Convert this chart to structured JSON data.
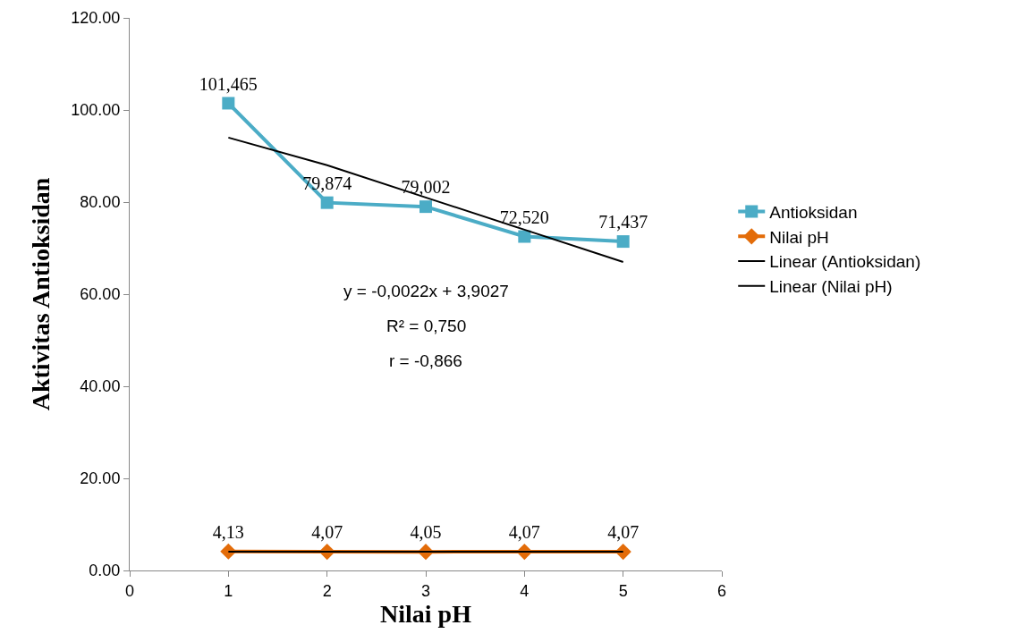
{
  "chart_data": {
    "type": "line",
    "xlabel": "Nilai pH",
    "ylabel": "Aktivitas Antioksidan",
    "x": [
      1,
      2,
      3,
      4,
      5
    ],
    "series": [
      {
        "name": "Antioksidan",
        "color": "#4bacc6",
        "marker": "square",
        "values": [
          101.465,
          79.874,
          79.002,
          72.52,
          71.437
        ],
        "value_labels": [
          "101,465",
          "79,874",
          "79,002",
          "72,520",
          "71,437"
        ]
      },
      {
        "name": "Nilai pH",
        "color": "#e36c09",
        "marker": "diamond",
        "values": [
          4.13,
          4.07,
          4.05,
          4.07,
          4.07
        ],
        "value_labels": [
          "4,13",
          "4,07",
          "4,05",
          "4,07",
          "4,07"
        ]
      },
      {
        "name": "Linear (Antioksidan)",
        "type": "line",
        "color": "#000000",
        "marker": "none",
        "values": [
          94,
          88,
          81,
          74,
          67
        ]
      },
      {
        "name": "Linear (Nilai pH)",
        "type": "line",
        "color": "#000000",
        "marker": "none",
        "values": [
          4.1,
          4.1,
          4.1,
          4.1,
          4.1
        ]
      }
    ],
    "annotations": [
      "y = -0,0022x + 3,9027",
      "R² = 0,750",
      "r = -0,866"
    ],
    "xlim": [
      0,
      6
    ],
    "xticks": [
      0,
      1,
      2,
      3,
      4,
      5,
      6
    ],
    "ylim": [
      0,
      120
    ],
    "yticks": [
      {
        "value": 0,
        "label": "0.00"
      },
      {
        "value": 20,
        "label": "20.00"
      },
      {
        "value": 40,
        "label": "40.00"
      },
      {
        "value": 60,
        "label": "60.00"
      },
      {
        "value": 80,
        "label": "80.00"
      },
      {
        "value": 100,
        "label": "100.00"
      },
      {
        "value": 120,
        "label": "120.00"
      }
    ],
    "grid": false,
    "legend": "right",
    "line_style": "solid"
  }
}
